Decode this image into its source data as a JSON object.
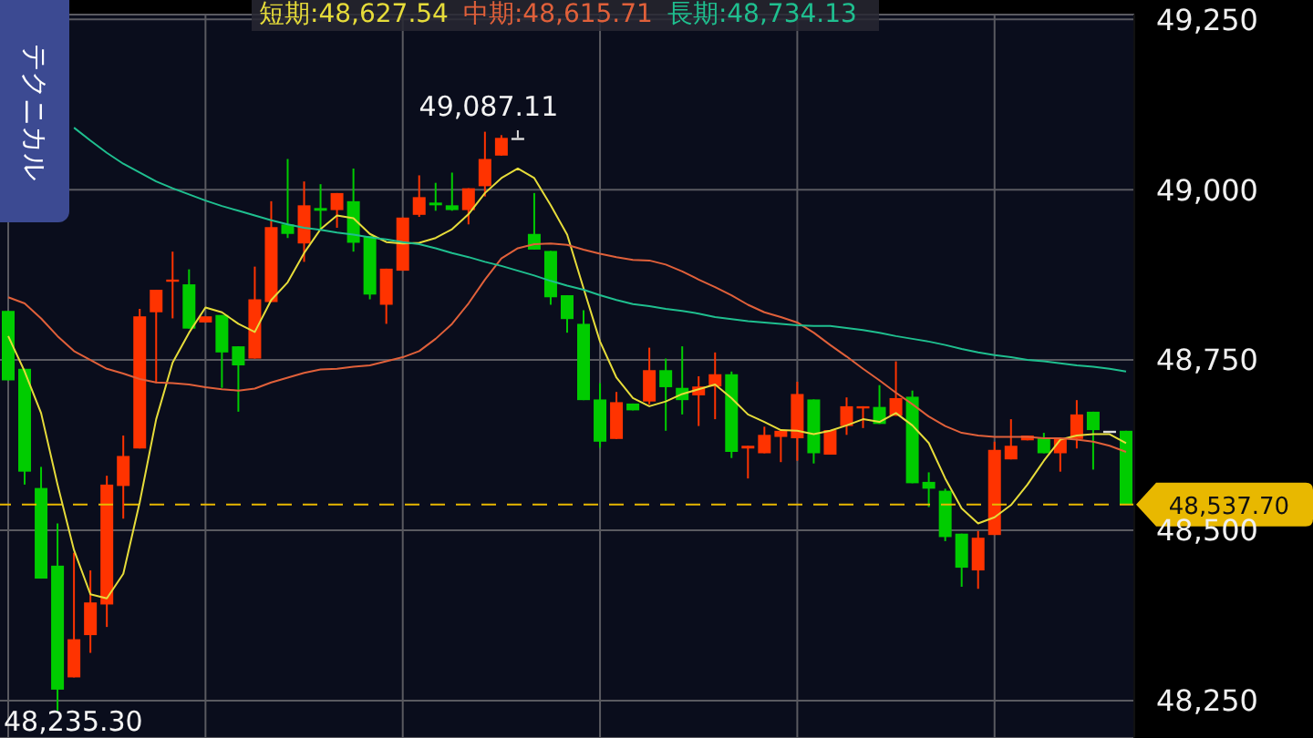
{
  "chart_data": {
    "type": "candlestick",
    "categories": [
      null,
      null,
      null,
      null,
      null,
      null,
      null,
      null,
      null,
      null,
      null,
      null,
      null,
      null,
      null,
      null,
      null,
      null,
      null,
      null,
      null,
      null,
      null,
      null,
      null,
      null,
      null,
      null,
      null,
      null,
      null,
      null,
      null,
      null,
      null,
      null,
      null,
      null,
      null,
      null,
      null,
      null,
      null,
      null,
      null,
      null,
      null,
      null,
      null,
      null,
      null,
      null,
      null,
      null,
      null,
      null,
      null,
      null,
      null,
      null,
      null,
      null,
      null,
      null,
      null,
      null,
      null,
      null,
      null
    ],
    "ohlc": [
      [
        48822,
        48822,
        48720,
        48720
      ],
      [
        48737,
        48737,
        48567,
        48586
      ],
      [
        48562,
        48593,
        48429,
        48429
      ],
      [
        48448,
        48510,
        48235.3,
        48266
      ],
      [
        48284,
        48467,
        48284,
        48340
      ],
      [
        48346,
        48441,
        48320,
        48394
      ],
      [
        48391,
        48580,
        48358,
        48567
      ],
      [
        48565,
        48639,
        48517,
        48609
      ],
      [
        48620,
        48825,
        48620,
        48814
      ],
      [
        48820,
        48853,
        48716,
        48853
      ],
      [
        48865,
        48909,
        48811,
        48868
      ],
      [
        48861,
        48883,
        48796,
        48796
      ],
      [
        48805,
        48814,
        48805,
        48814
      ],
      [
        48816,
        48816,
        48709,
        48761
      ],
      [
        48770,
        48770,
        48674,
        48742
      ],
      [
        48752,
        48887,
        48752,
        48839
      ],
      [
        48835,
        48983,
        48835,
        48945
      ],
      [
        48949,
        49045,
        48929,
        48935
      ],
      [
        48921,
        49012,
        48894,
        48977
      ],
      [
        48973,
        49008,
        48942,
        48969
      ],
      [
        48970,
        48995,
        48944,
        48995
      ],
      [
        48983,
        49031,
        48909,
        48922
      ],
      [
        48932,
        48932,
        48839,
        48846
      ],
      [
        48831,
        48884,
        48803,
        48884
      ],
      [
        48881,
        48959,
        48881,
        48959
      ],
      [
        48963,
        49021,
        48960,
        48989
      ],
      [
        48981,
        49010,
        48969,
        48977
      ],
      [
        48977,
        49025,
        48969,
        48970
      ],
      [
        48970,
        49002,
        48949,
        49002
      ],
      [
        49005,
        49085,
        48990,
        49045
      ],
      [
        49050,
        49080,
        49050,
        49076
      ],
      [
        49076,
        49087.11,
        49076,
        49076
      ],
      [
        48935,
        48995,
        48912,
        48912
      ],
      [
        48910,
        48910,
        48831,
        48842
      ],
      [
        48845,
        48845,
        48790,
        48810
      ],
      [
        48803,
        48823,
        48691,
        48691
      ],
      [
        48692,
        48716,
        48621,
        48630
      ],
      [
        48634,
        48703,
        48634,
        48688
      ],
      [
        48686,
        48686,
        48676,
        48676
      ],
      [
        48689,
        48768,
        48685,
        48735
      ],
      [
        48735,
        48752,
        48646,
        48710
      ],
      [
        48709,
        48770,
        48670,
        48691
      ],
      [
        48698,
        48726,
        48653,
        48711
      ],
      [
        48711,
        48761,
        48663,
        48729
      ],
      [
        48729,
        48733,
        48606,
        48615
      ],
      [
        48620,
        48624,
        48576,
        48624
      ],
      [
        48613,
        48652,
        48613,
        48640
      ],
      [
        48637,
        48646,
        48600,
        48646
      ],
      [
        48635,
        48718,
        48602,
        48700
      ],
      [
        48692,
        48692,
        48598,
        48613
      ],
      [
        48611,
        48647,
        48611,
        48647
      ],
      [
        48653,
        48695,
        48640,
        48682
      ],
      [
        48680,
        48682,
        48650,
        48682
      ],
      [
        48681,
        48713,
        48656,
        48656
      ],
      [
        48668,
        48748,
        48668,
        48694
      ],
      [
        48696,
        48705,
        48569,
        48569
      ],
      [
        48571,
        48585,
        48534,
        48561
      ],
      [
        48558,
        48561,
        48484,
        48490
      ],
      [
        48495,
        48495,
        48417,
        48445
      ],
      [
        48441,
        48499,
        48414,
        48489
      ],
      [
        48493,
        48630,
        48493,
        48618
      ],
      [
        48604,
        48663,
        48604,
        48624
      ],
      [
        48632,
        48639,
        48632,
        48639
      ],
      [
        48635,
        48643,
        48613,
        48613
      ],
      [
        48613,
        48635,
        48586,
        48635
      ],
      [
        48634,
        48691,
        48620,
        48670
      ],
      [
        48674,
        48674,
        48589,
        48647
      ],
      [
        48646,
        48646,
        48646,
        48646
      ],
      [
        48646,
        48646,
        48537.7,
        48537.7
      ]
    ],
    "colors": [
      "#00cc00",
      "#00cc00",
      "#00cc00",
      "#00cc00",
      "#ff3300",
      "#ff3300",
      "#ff3300",
      "#ff3300",
      "#ff3300",
      "#ff3300",
      "#ff3300",
      "#00cc00",
      "#ff3300",
      "#00cc00",
      "#00cc00",
      "#ff3300",
      "#ff3300",
      "#00cc00",
      "#ff3300",
      "#00cc00",
      "#ff3300",
      "#00cc00",
      "#00cc00",
      "#ff3300",
      "#ff3300",
      "#ff3300",
      "#00cc00",
      "#00cc00",
      "#ff3300",
      "#ff3300",
      "#ff3300",
      "#dddddd",
      "#00cc00",
      "#00cc00",
      "#00cc00",
      "#00cc00",
      "#00cc00",
      "#ff3300",
      "#00cc00",
      "#ff3300",
      "#00cc00",
      "#00cc00",
      "#ff3300",
      "#ff3300",
      "#00cc00",
      "#ff3300",
      "#ff3300",
      "#ff3300",
      "#ff3300",
      "#00cc00",
      "#ff3300",
      "#ff3300",
      "#ff3300",
      "#00cc00",
      "#ff3300",
      "#00cc00",
      "#00cc00",
      "#00cc00",
      "#00cc00",
      "#ff3300",
      "#ff3300",
      "#ff3300",
      "#ff3300",
      "#00cc00",
      "#ff3300",
      "#ff3300",
      "#00cc00",
      "#dddddd",
      "#00cc00"
    ],
    "series": [
      {
        "type": "line",
        "name": "短期:48,627.54",
        "color": "#e6dc3a",
        "values": [
          48785,
          48733,
          48672,
          48567,
          48471,
          48406,
          48400,
          48436,
          48541,
          48663,
          48746,
          48790,
          48827,
          48820,
          48803,
          48791,
          48838,
          48864,
          48907,
          48942,
          48962,
          48958,
          48935,
          48923,
          48921,
          48922,
          48929,
          48942,
          48964,
          48995,
          49017,
          49031,
          49017,
          48977,
          48934,
          48855,
          48777,
          48724,
          48694,
          48682,
          48689,
          48700,
          48707,
          48714,
          48694,
          48670,
          48659,
          48647,
          48646,
          48641,
          48646,
          48654,
          48663,
          48659,
          48672,
          48654,
          48628,
          48576,
          48532,
          48510,
          48519,
          48537,
          48567,
          48602,
          48633,
          48639,
          48641,
          48641,
          48628
        ]
      },
      {
        "type": "line",
        "name": "中期:48,615.71",
        "color": "#e0603a",
        "values": [
          48842,
          48833,
          48811,
          48785,
          48763,
          48750,
          48737,
          48730,
          48722,
          48717,
          48716,
          48714,
          48710,
          48707,
          48705,
          48708,
          48717,
          48724,
          48731,
          48736,
          48737,
          48740,
          48742,
          48748,
          48754,
          48763,
          48781,
          48803,
          48833,
          48868,
          48899,
          48914,
          48920,
          48921,
          48919,
          48912,
          48906,
          48901,
          48897,
          48896,
          48890,
          48880,
          48868,
          48857,
          48845,
          48831,
          48820,
          48813,
          48805,
          48790,
          48772,
          48755,
          48737,
          48720,
          48702,
          48685,
          48667,
          48653,
          48643,
          48639,
          48637,
          48637,
          48637,
          48635,
          48635,
          48633,
          48630,
          48624,
          48615
        ]
      },
      {
        "type": "line",
        "name": "長期:48,734.13",
        "color": "#1fbf8f",
        "values": [
          null,
          null,
          null,
          null,
          49091,
          49072,
          49054,
          49038,
          49025,
          49012,
          49002,
          48993,
          48984,
          48976,
          48969,
          48962,
          48955,
          48949,
          48944,
          48941,
          48937,
          48934,
          48930,
          48927,
          48923,
          48920,
          48914,
          48907,
          48901,
          48894,
          48888,
          48881,
          48874,
          48866,
          48859,
          48853,
          48845,
          48838,
          48832,
          48829,
          48825,
          48822,
          48818,
          48813,
          48810,
          48807,
          48805,
          48803,
          48801,
          48800,
          48800,
          48797,
          48794,
          48790,
          48785,
          48781,
          48777,
          48772,
          48766,
          48761,
          48757,
          48754,
          48750,
          48748,
          48745,
          48742,
          48740,
          48737,
          48733
        ]
      }
    ],
    "ylim": [
      48195,
      49257
    ],
    "yticks": [
      {
        "value": 48250,
        "label": "48,250"
      },
      {
        "value": 48500,
        "label": "48,500"
      },
      {
        "value": 48750,
        "label": "48,750"
      },
      {
        "value": 49000,
        "label": "49,000"
      },
      {
        "value": 49250,
        "label": "49,250"
      }
    ],
    "ref_lines": [
      {
        "axis": "y",
        "value": 48537.7,
        "label": "48,537.70",
        "color": "#e8b800",
        "line_style": "dashed"
      }
    ],
    "annotations": [
      "テクニカル",
      {
        "text": "49,087.11",
        "y": 49087.11
      },
      "48,235.30"
    ],
    "grid": true,
    "legend": "top",
    "marker": "none",
    "tick_labels": "y"
  }
}
